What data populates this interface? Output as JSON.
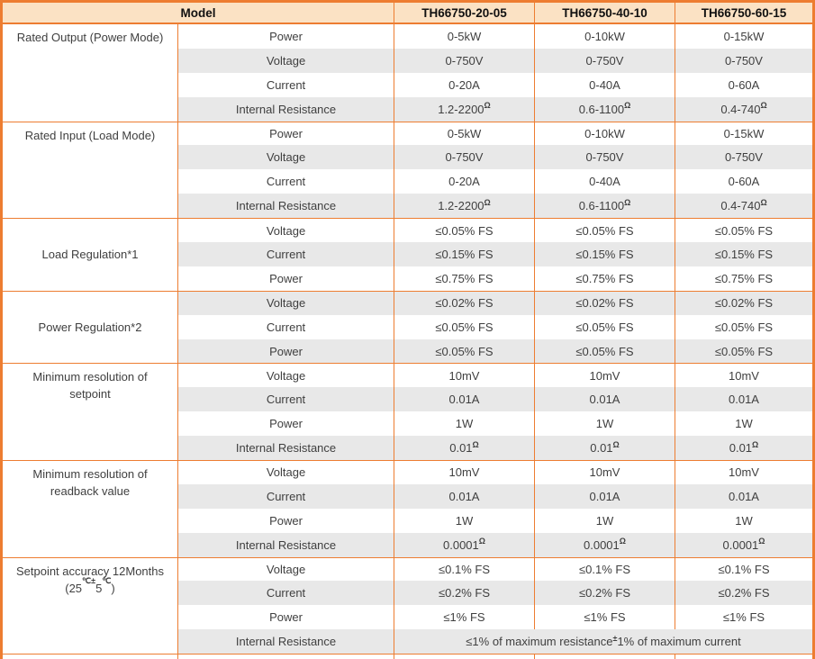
{
  "colors": {
    "border_orange": "#ED7D31",
    "header_fill": "#FBE2C4",
    "stripe_gray": "#E8E8E8",
    "text_dark": "#3F3F3F",
    "header_text": "#111111"
  },
  "table": {
    "header": {
      "model_label": "Model",
      "models": [
        "TH66750-20-05",
        "TH66750-40-10",
        "TH66750-60-15"
      ]
    },
    "groups": [
      {
        "valign": "top",
        "label": [
          [
            {
              "t": "Rated Output (Power Mode)"
            }
          ]
        ],
        "rows": [
          {
            "param": "Power",
            "values": [
              [
                {
                  "t": "0-5kW"
                }
              ],
              [
                {
                  "t": "0-10kW"
                }
              ],
              [
                {
                  "t": "0-15kW"
                }
              ]
            ]
          },
          {
            "param": "Voltage",
            "values": [
              [
                {
                  "t": "0-750V"
                }
              ],
              [
                {
                  "t": "0-750V"
                }
              ],
              [
                {
                  "t": "0-750V"
                }
              ]
            ]
          },
          {
            "param": "Current",
            "values": [
              [
                {
                  "t": "0-20A"
                }
              ],
              [
                {
                  "t": "0-40A"
                }
              ],
              [
                {
                  "t": "0-60A"
                }
              ]
            ]
          },
          {
            "param": "Internal Resistance",
            "values": [
              [
                {
                  "t": "1.2-2200"
                },
                {
                  "t": "Ω",
                  "sup": true
                }
              ],
              [
                {
                  "t": "0.6-1100"
                },
                {
                  "t": "Ω",
                  "sup": true
                }
              ],
              [
                {
                  "t": "0.4-740"
                },
                {
                  "t": "Ω",
                  "sup": true
                }
              ]
            ]
          }
        ]
      },
      {
        "valign": "top",
        "label": [
          [
            {
              "t": "Rated Input (Load Mode)"
            }
          ]
        ],
        "rows": [
          {
            "param": "Power",
            "values": [
              [
                {
                  "t": "0-5kW"
                }
              ],
              [
                {
                  "t": "0-10kW"
                }
              ],
              [
                {
                  "t": "0-15kW"
                }
              ]
            ]
          },
          {
            "param": "Voltage",
            "values": [
              [
                {
                  "t": "0-750V"
                }
              ],
              [
                {
                  "t": "0-750V"
                }
              ],
              [
                {
                  "t": "0-750V"
                }
              ]
            ]
          },
          {
            "param": "Current",
            "values": [
              [
                {
                  "t": "0-20A"
                }
              ],
              [
                {
                  "t": "0-40A"
                }
              ],
              [
                {
                  "t": "0-60A"
                }
              ]
            ]
          },
          {
            "param": "Internal Resistance",
            "values": [
              [
                {
                  "t": "1.2-2200"
                },
                {
                  "t": "Ω",
                  "sup": true
                }
              ],
              [
                {
                  "t": "0.6-1100"
                },
                {
                  "t": "Ω",
                  "sup": true
                }
              ],
              [
                {
                  "t": "0.4-740"
                },
                {
                  "t": "Ω",
                  "sup": true
                }
              ]
            ]
          }
        ]
      },
      {
        "valign": "middle",
        "label": [
          [
            {
              "t": "Load Regulation*1"
            }
          ]
        ],
        "rows": [
          {
            "param": "Voltage",
            "values": [
              [
                {
                  "t": "≤0.05% FS"
                }
              ],
              [
                {
                  "t": "≤0.05% FS"
                }
              ],
              [
                {
                  "t": "≤0.05% FS"
                }
              ]
            ]
          },
          {
            "param": "Current",
            "values": [
              [
                {
                  "t": "≤0.15% FS"
                }
              ],
              [
                {
                  "t": "≤0.15% FS"
                }
              ],
              [
                {
                  "t": "≤0.15% FS"
                }
              ]
            ]
          },
          {
            "param": "Power",
            "values": [
              [
                {
                  "t": "≤0.75% FS"
                }
              ],
              [
                {
                  "t": "≤0.75% FS"
                }
              ],
              [
                {
                  "t": "≤0.75% FS"
                }
              ]
            ]
          }
        ]
      },
      {
        "valign": "middle",
        "label": [
          [
            {
              "t": "Power Regulation*2"
            }
          ]
        ],
        "rows": [
          {
            "param": "Voltage",
            "values": [
              [
                {
                  "t": "≤0.02% FS"
                }
              ],
              [
                {
                  "t": "≤0.02% FS"
                }
              ],
              [
                {
                  "t": "≤0.02% FS"
                }
              ]
            ]
          },
          {
            "param": "Current",
            "values": [
              [
                {
                  "t": "≤0.05% FS"
                }
              ],
              [
                {
                  "t": "≤0.05% FS"
                }
              ],
              [
                {
                  "t": "≤0.05% FS"
                }
              ]
            ]
          },
          {
            "param": "Power",
            "values": [
              [
                {
                  "t": "≤0.05% FS"
                }
              ],
              [
                {
                  "t": "≤0.05% FS"
                }
              ],
              [
                {
                  "t": "≤0.05% FS"
                }
              ]
            ]
          }
        ]
      },
      {
        "valign": "top",
        "label": [
          [
            {
              "t": "Minimum resolution of"
            }
          ],
          [
            {
              "t": "setpoint"
            }
          ]
        ],
        "rows": [
          {
            "param": "Voltage",
            "values": [
              [
                {
                  "t": "10mV"
                }
              ],
              [
                {
                  "t": "10mV"
                }
              ],
              [
                {
                  "t": "10mV"
                }
              ]
            ]
          },
          {
            "param": "Current",
            "values": [
              [
                {
                  "t": "0.01A"
                }
              ],
              [
                {
                  "t": "0.01A"
                }
              ],
              [
                {
                  "t": "0.01A"
                }
              ]
            ]
          },
          {
            "param": "Power",
            "values": [
              [
                {
                  "t": "1W"
                }
              ],
              [
                {
                  "t": "1W"
                }
              ],
              [
                {
                  "t": "1W"
                }
              ]
            ]
          },
          {
            "param": "Internal Resistance",
            "values": [
              [
                {
                  "t": "0.01"
                },
                {
                  "t": "Ω",
                  "sup": true
                }
              ],
              [
                {
                  "t": "0.01"
                },
                {
                  "t": "Ω",
                  "sup": true
                }
              ],
              [
                {
                  "t": "0.01"
                },
                {
                  "t": "Ω",
                  "sup": true
                }
              ]
            ]
          }
        ]
      },
      {
        "valign": "top",
        "label": [
          [
            {
              "t": "Minimum resolution of"
            }
          ],
          [
            {
              "t": "readback value"
            }
          ]
        ],
        "rows": [
          {
            "param": "Voltage",
            "values": [
              [
                {
                  "t": "10mV"
                }
              ],
              [
                {
                  "t": "10mV"
                }
              ],
              [
                {
                  "t": "10mV"
                }
              ]
            ]
          },
          {
            "param": "Current",
            "values": [
              [
                {
                  "t": "0.01A"
                }
              ],
              [
                {
                  "t": "0.01A"
                }
              ],
              [
                {
                  "t": "0.01A"
                }
              ]
            ]
          },
          {
            "param": "Power",
            "values": [
              [
                {
                  "t": "1W"
                }
              ],
              [
                {
                  "t": "1W"
                }
              ],
              [
                {
                  "t": "1W"
                }
              ]
            ]
          },
          {
            "param": "Internal Resistance",
            "values": [
              [
                {
                  "t": "0.0001"
                },
                {
                  "t": "Ω",
                  "sup": true
                }
              ],
              [
                {
                  "t": "0.0001"
                },
                {
                  "t": "Ω",
                  "sup": true
                }
              ],
              [
                {
                  "t": "0.0001"
                },
                {
                  "t": "Ω",
                  "sup": true
                }
              ]
            ]
          }
        ]
      },
      {
        "valign": "top",
        "label": [
          [
            {
              "t": "Setpoint accuracy 12Months"
            }
          ],
          [
            {
              "t": "(25"
            },
            {
              "t": "℃±",
              "sup": true
            },
            {
              "t": "5"
            },
            {
              "t": "℃",
              "sup": true
            },
            {
              "t": ")"
            }
          ]
        ],
        "rows": [
          {
            "param": "Voltage",
            "values": [
              [
                {
                  "t": "≤0.1% FS"
                }
              ],
              [
                {
                  "t": "≤0.1% FS"
                }
              ],
              [
                {
                  "t": "≤0.1% FS"
                }
              ]
            ]
          },
          {
            "param": "Current",
            "values": [
              [
                {
                  "t": "≤0.2% FS"
                }
              ],
              [
                {
                  "t": "≤0.2% FS"
                }
              ],
              [
                {
                  "t": "≤0.2% FS"
                }
              ]
            ]
          },
          {
            "param": "Power",
            "values": [
              [
                {
                  "t": "≤1% FS"
                }
              ],
              [
                {
                  "t": "≤1% FS"
                }
              ],
              [
                {
                  "t": "≤1% FS"
                }
              ]
            ]
          },
          {
            "param": "Internal Resistance",
            "merged": [
              {
                "t": "≤1% of maximum resistance "
              },
              {
                "t": "±",
                "sup": true
              },
              {
                "t": "1% of maximum current"
              }
            ]
          }
        ]
      }
    ]
  }
}
